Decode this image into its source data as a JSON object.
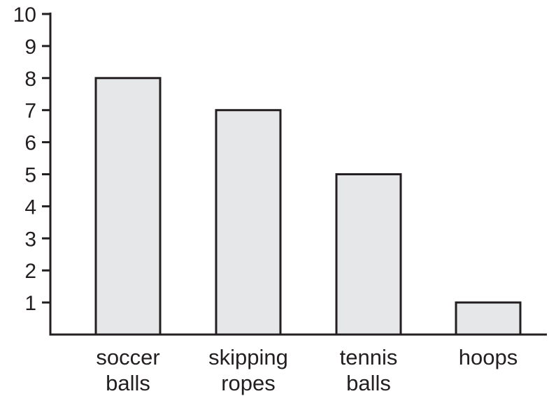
{
  "chart_data": {
    "type": "bar",
    "categories": [
      [
        "soccer",
        "balls"
      ],
      [
        "skipping",
        "ropes"
      ],
      [
        "tennis",
        "balls"
      ],
      [
        "hoops"
      ]
    ],
    "values": [
      8,
      7,
      5,
      1
    ],
    "ylim": [
      0,
      10
    ],
    "yticks": [
      "1",
      "2",
      "3",
      "4",
      "5",
      "6",
      "7",
      "8",
      "9",
      "10"
    ],
    "title": "",
    "xlabel": "",
    "ylabel": "",
    "grid": false,
    "colors": {
      "bar_fill": "#e6e7e8",
      "stroke": "#231f20",
      "text": "#231f20"
    }
  }
}
